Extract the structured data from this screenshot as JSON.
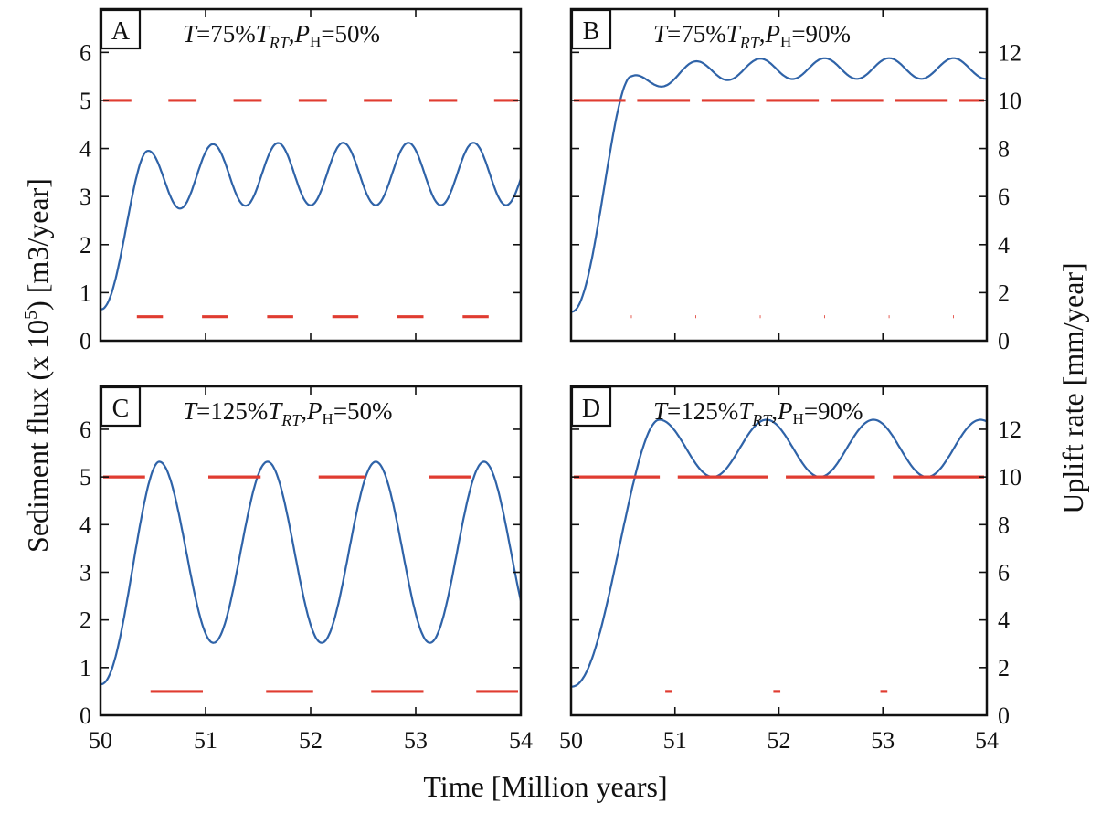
{
  "colors": {
    "flux": "#2f63a8",
    "uplift": "#e03c31",
    "axes": "#111111"
  },
  "labels": {
    "xlabel": "Time [Million years]",
    "ylabel_left": "Sediment flux (x 10^5) [m3/year]",
    "ylabel_right": "Uplift rate [mm/year]"
  },
  "chart_data": [
    {
      "type": "line",
      "panel": "A",
      "title": "T=75% T_RT, P_H=50%",
      "xlim": [
        50,
        54
      ],
      "ylim": [
        0,
        6.9
      ],
      "x_ticks": [
        50,
        51,
        52,
        53,
        54
      ],
      "y_ticks": [
        0,
        1,
        2,
        3,
        4,
        5,
        6
      ],
      "flux": {
        "initial": 0.65,
        "rise_to": 3.5,
        "rise_time": 0.3,
        "period": 0.62,
        "peak": 4.12,
        "trough": 2.82,
        "first_peak_time": 0.45,
        "first_peak_value": 3.95
      },
      "uplift_period": 0.62,
      "uplift_high_fraction": 0.5,
      "uplift_rates_mm_per_year": {
        "high": 10,
        "low": 1
      },
      "uplift_segments": {
        "high": [
          [
            50.0,
            50.32
          ],
          [
            50.62,
            50.94
          ],
          [
            51.24,
            51.56
          ],
          [
            51.86,
            52.18
          ],
          [
            52.48,
            52.8
          ],
          [
            53.1,
            53.42
          ],
          [
            53.72,
            54.0
          ]
        ],
        "low": [
          [
            50.32,
            50.62
          ],
          [
            50.94,
            51.24
          ],
          [
            51.56,
            51.86
          ],
          [
            52.18,
            52.48
          ],
          [
            52.8,
            53.1
          ],
          [
            53.42,
            53.72
          ]
        ]
      }
    },
    {
      "type": "line",
      "panel": "B",
      "title": "T=75% T_RT, P_H=90%",
      "xlim": [
        50,
        54
      ],
      "ylim": [
        0,
        6.9
      ],
      "x_ticks": [
        50,
        51,
        52,
        53,
        54
      ],
      "y2_ticks": [
        0,
        2,
        4,
        6,
        8,
        10,
        12
      ],
      "flux": {
        "initial": 0.6,
        "rise_to": 5.65,
        "rise_time": 0.32,
        "period": 0.62,
        "peak": 5.88,
        "trough": 5.45,
        "first_peak_time": 0.58,
        "first_peak_value": 5.5
      },
      "uplift_period": 0.62,
      "uplift_high_fraction": 0.9,
      "uplift_rates_mm_per_year": {
        "high": 10,
        "low": 1
      },
      "uplift_segments": {
        "high": [
          [
            50.0,
            50.55
          ],
          [
            50.61,
            51.17
          ],
          [
            51.23,
            51.79
          ],
          [
            51.85,
            52.41
          ],
          [
            52.47,
            53.03
          ],
          [
            53.09,
            53.65
          ],
          [
            53.71,
            54.0
          ]
        ],
        "low": [
          [
            50.55,
            50.61
          ],
          [
            51.17,
            51.23
          ],
          [
            51.79,
            51.85
          ],
          [
            52.41,
            52.47
          ],
          [
            53.03,
            53.09
          ],
          [
            53.65,
            53.71
          ]
        ]
      }
    },
    {
      "type": "line",
      "panel": "C",
      "title": "T=125% T_RT, P_H=50%",
      "xlim": [
        50,
        54
      ],
      "ylim": [
        0,
        6.9
      ],
      "x_ticks": [
        50,
        51,
        52,
        53,
        54
      ],
      "y_ticks": [
        0,
        1,
        2,
        3,
        4,
        5,
        6
      ],
      "flux": {
        "initial": 0.65,
        "rise_to": 3.4,
        "rise_time": 0.28,
        "period": 1.03,
        "peak": 5.32,
        "trough": 1.52,
        "first_peak_time": 0.56,
        "first_peak_value": 5.32
      },
      "uplift_period": 1.03,
      "uplift_high_fraction": 0.5,
      "uplift_rates_mm_per_year": {
        "high": 10,
        "low": 1
      },
      "uplift_segments": {
        "high": [
          [
            50.0,
            50.45
          ],
          [
            51.0,
            51.55
          ],
          [
            52.05,
            52.55
          ],
          [
            53.1,
            53.55
          ]
        ],
        "low": [
          [
            50.45,
            51.0
          ],
          [
            51.55,
            52.05
          ],
          [
            52.55,
            53.1
          ],
          [
            53.55,
            54.0
          ]
        ]
      }
    },
    {
      "type": "line",
      "panel": "D",
      "title": "T=125% T_RT, P_H=90%",
      "xlim": [
        50,
        54
      ],
      "ylim": [
        0,
        6.9
      ],
      "x_ticks": [
        50,
        51,
        52,
        53,
        54
      ],
      "y2_ticks": [
        0,
        2,
        4,
        6,
        8,
        10,
        12
      ],
      "flux": {
        "initial": 0.6,
        "rise_to": 5.6,
        "rise_time": 0.3,
        "period": 1.03,
        "peak": 6.2,
        "trough": 5.0,
        "first_peak_time": 0.85,
        "first_peak_value": 6.2
      },
      "uplift_period": 1.03,
      "uplift_high_fraction": 0.9,
      "uplift_rates_mm_per_year": {
        "high": 10,
        "low": 1
      },
      "uplift_segments": {
        "high": [
          [
            50.0,
            50.88
          ],
          [
            51.0,
            51.92
          ],
          [
            52.04,
            52.95
          ],
          [
            53.07,
            54.0
          ]
        ],
        "low": [
          [
            50.88,
            51.0
          ],
          [
            51.92,
            52.04
          ],
          [
            52.95,
            53.07
          ]
        ]
      }
    }
  ]
}
